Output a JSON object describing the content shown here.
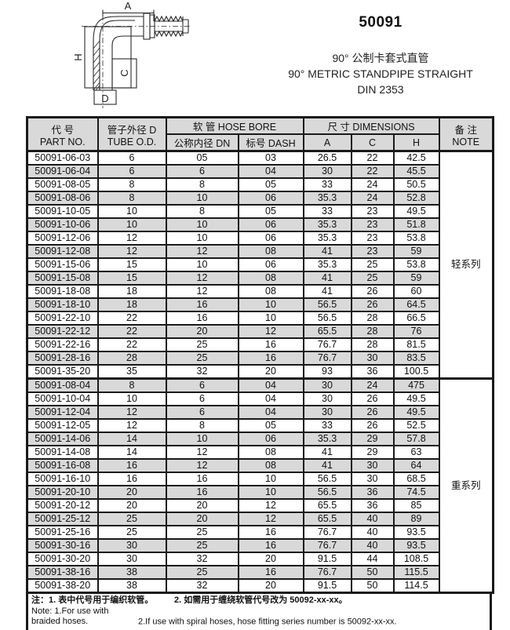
{
  "header": {
    "product_code": "50091",
    "title_cn": "90° 公制卡套式直管",
    "title_en": "90° METRIC STANDPIPE STRAIGHT",
    "standard": "DIN 2353"
  },
  "drawing": {
    "dim_a": "A",
    "dim_h": "H",
    "dim_c": "C",
    "dim_d": "D"
  },
  "table": {
    "headers": {
      "part_no_cn": "代  号",
      "part_no_en": "PART NO.",
      "tube_od_cn": "管子外径 D",
      "tube_od_en": "TUBE O.D.",
      "hose_bore": "软 管  HOSE BORE",
      "dn": "公称内径 DN",
      "dash": "标号 DASH",
      "dimensions": "尺 寸 DIMENSIONS",
      "a": "A",
      "c": "C",
      "h": "H",
      "note_cn": "备  注",
      "note_en": "NOTE"
    },
    "sections": [
      {
        "note": "轻系列",
        "rows": [
          [
            "50091-06-03",
            "6",
            "05",
            "03",
            "26.5",
            "22",
            "42.5"
          ],
          [
            "50091-06-04",
            "6",
            "6",
            "04",
            "30",
            "22",
            "45.5"
          ],
          [
            "50091-08-05",
            "8",
            "8",
            "05",
            "33",
            "24",
            "50.5"
          ],
          [
            "50091-08-06",
            "8",
            "10",
            "06",
            "35.3",
            "24",
            "52.8"
          ],
          [
            "50091-10-05",
            "10",
            "8",
            "05",
            "33",
            "23",
            "49.5"
          ],
          [
            "50091-10-06",
            "10",
            "10",
            "06",
            "35.3",
            "23",
            "51.8"
          ],
          [
            "50091-12-06",
            "12",
            "10",
            "06",
            "35.3",
            "23",
            "53.8"
          ],
          [
            "50091-12-08",
            "12",
            "12",
            "08",
            "41",
            "23",
            "59"
          ],
          [
            "50091-15-06",
            "15",
            "10",
            "06",
            "35.3",
            "25",
            "53.8"
          ],
          [
            "50091-15-08",
            "15",
            "12",
            "08",
            "41",
            "25",
            "59"
          ],
          [
            "50091-18-08",
            "18",
            "12",
            "08",
            "41",
            "26",
            "60"
          ],
          [
            "50091-18-10",
            "18",
            "16",
            "10",
            "56.5",
            "26",
            "64.5"
          ],
          [
            "50091-22-10",
            "22",
            "16",
            "10",
            "56.5",
            "28",
            "66.5"
          ],
          [
            "50091-22-12",
            "22",
            "20",
            "12",
            "65.5",
            "28",
            "76"
          ],
          [
            "50091-22-16",
            "22",
            "25",
            "16",
            "76.7",
            "28",
            "81.5"
          ],
          [
            "50091-28-16",
            "28",
            "25",
            "16",
            "76.7",
            "30",
            "83.5"
          ],
          [
            "50091-35-20",
            "35",
            "32",
            "20",
            "93",
            "36",
            "100.5"
          ]
        ]
      },
      {
        "note": "重系列",
        "rows": [
          [
            "50091-08-04",
            "8",
            "6",
            "04",
            "30",
            "24",
            "475"
          ],
          [
            "50091-10-04",
            "10",
            "6",
            "04",
            "30",
            "26",
            "49.5"
          ],
          [
            "50091-12-04",
            "12",
            "6",
            "04",
            "30",
            "26",
            "49.5"
          ],
          [
            "50091-12-05",
            "12",
            "8",
            "05",
            "33",
            "26",
            "52.5"
          ],
          [
            "50091-14-06",
            "14",
            "10",
            "06",
            "35.3",
            "29",
            "57.8"
          ],
          [
            "50091-14-08",
            "14",
            "12",
            "08",
            "41",
            "29",
            "63"
          ],
          [
            "50091-16-08",
            "16",
            "12",
            "08",
            "41",
            "30",
            "64"
          ],
          [
            "50091-16-10",
            "16",
            "16",
            "10",
            "56.5",
            "30",
            "68.5"
          ],
          [
            "50091-20-10",
            "20",
            "16",
            "10",
            "56.5",
            "36",
            "74.5"
          ],
          [
            "50091-20-12",
            "20",
            "20",
            "12",
            "65.5",
            "36",
            "85"
          ],
          [
            "50091-25-12",
            "25",
            "20",
            "12",
            "65.5",
            "40",
            "89"
          ],
          [
            "50091-25-16",
            "25",
            "25",
            "16",
            "76.7",
            "40",
            "93.5"
          ],
          [
            "50091-30-16",
            "30",
            "25",
            "16",
            "76.7",
            "40",
            "93.5"
          ],
          [
            "50091-30-20",
            "30",
            "32",
            "20",
            "91.5",
            "44",
            "108.5"
          ],
          [
            "50091-38-16",
            "38",
            "25",
            "16",
            "76.7",
            "50",
            "115.5"
          ],
          [
            "50091-38-20",
            "38",
            "32",
            "20",
            "91.5",
            "50",
            "114.5"
          ]
        ]
      }
    ]
  },
  "footer": {
    "note_cn_1": "注：1. 表中代号用于编织软管。",
    "note_cn_2": "2. 如需用于缠绕软管代号改为 50092-xx-xx。",
    "note_en_1": "Note: 1.For use with braided hoses.",
    "note_en_2": "2.If use with spiral hoses, hose fitting series number is 50092-xx-xx."
  },
  "colors": {
    "stripe": "#d9d9d9",
    "border": "#1a1a1a",
    "text": "#111111"
  }
}
